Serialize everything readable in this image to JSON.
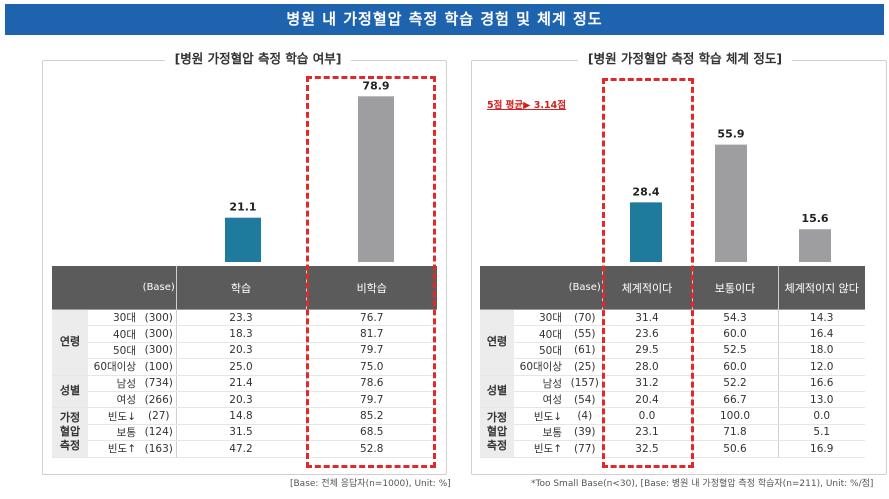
{
  "title": "병원 내 가정혈압 측정 학습 경험 및 체계 정도",
  "colors": {
    "title_bg": "#1e63ae",
    "teal": "#1f7b9e",
    "gray": "#9e9ea0",
    "header": "#5b5b5b",
    "highlight": "#e02a2a"
  },
  "chart_data": [
    {
      "type": "bar",
      "title": "[병원 가정혈압 측정 학습 여부]",
      "categories": [
        "학습",
        "비학습"
      ],
      "values": [
        21.1,
        78.9
      ],
      "ylim": [
        0,
        100
      ],
      "bar_colors": [
        "#1f7b9e",
        "#9e9ea0"
      ],
      "highlight": "비학습"
    },
    {
      "type": "bar",
      "title": "[병원 가정혈압 측정 학습 체계 정도]",
      "categories": [
        "체계적이다",
        "보통이다",
        "체계적이지 않다"
      ],
      "values": [
        28.4,
        55.9,
        15.6
      ],
      "ylim": [
        0,
        100
      ],
      "bar_colors": [
        "#1f7b9e",
        "#9e9ea0",
        "#9e9ea0"
      ],
      "annotation": "5점 평균▶ 3.14점",
      "highlight": "체계적이다"
    }
  ],
  "left_table": {
    "header": [
      "",
      "(Base)",
      "학습",
      "비학습"
    ],
    "groups": [
      {
        "name": "연령",
        "rows": [
          {
            "label": "30대",
            "base": "(300)",
            "v": [
              "23.3",
              "76.7"
            ]
          },
          {
            "label": "40대",
            "base": "(300)",
            "v": [
              "18.3",
              "81.7"
            ]
          },
          {
            "label": "50대",
            "base": "(300)",
            "v": [
              "20.3",
              "79.7"
            ]
          },
          {
            "label": "60대이상",
            "base": "(100)",
            "v": [
              "25.0",
              "75.0"
            ]
          }
        ]
      },
      {
        "name": "성별",
        "rows": [
          {
            "label": "남성",
            "base": "(734)",
            "v": [
              "21.4",
              "78.6"
            ]
          },
          {
            "label": "여성",
            "base": "(266)",
            "v": [
              "20.3",
              "79.7"
            ]
          }
        ]
      },
      {
        "name": "가정\n혈압\n측정",
        "rows": [
          {
            "label": "빈도↓",
            "base": "(27)",
            "v": [
              "14.8",
              "85.2"
            ]
          },
          {
            "label": "보통",
            "base": "(124)",
            "v": [
              "31.5",
              "68.5"
            ]
          },
          {
            "label": "빈도↑",
            "base": "(163)",
            "v": [
              "47.2",
              "52.8"
            ]
          }
        ]
      }
    ]
  },
  "right_table": {
    "header": [
      "",
      "(Base)",
      "체계적이다",
      "보통이다",
      "체계적이지 않다"
    ],
    "groups": [
      {
        "name": "연령",
        "rows": [
          {
            "label": "30대",
            "base": "(70)",
            "v": [
              "31.4",
              "54.3",
              "14.3"
            ]
          },
          {
            "label": "40대",
            "base": "(55)",
            "v": [
              "23.6",
              "60.0",
              "16.4"
            ]
          },
          {
            "label": "50대",
            "base": "(61)",
            "v": [
              "29.5",
              "52.5",
              "18.0"
            ]
          },
          {
            "label": "60대이상",
            "base": "(25)",
            "v": [
              "28.0",
              "60.0",
              "12.0"
            ]
          }
        ]
      },
      {
        "name": "성별",
        "rows": [
          {
            "label": "남성",
            "base": "(157)",
            "v": [
              "31.2",
              "52.2",
              "16.6"
            ]
          },
          {
            "label": "여성",
            "base": "(54)",
            "v": [
              "20.4",
              "66.7",
              "13.0"
            ]
          }
        ]
      },
      {
        "name": "가정\n혈압\n측정",
        "rows": [
          {
            "label": "빈도↓",
            "base": "(4)",
            "v": [
              "0.0",
              "100.0",
              "0.0"
            ]
          },
          {
            "label": "보통",
            "base": "(39)",
            "v": [
              "23.1",
              "71.8",
              "5.1"
            ]
          },
          {
            "label": "빈도↑",
            "base": "(77)",
            "v": [
              "32.5",
              "50.6",
              "16.9"
            ]
          }
        ]
      }
    ]
  },
  "footnotes": {
    "left": "[Base: 전체 응답자(n=1000), Unit: %]",
    "right": "*Too Small Base(n<30), [Base: 병원 내 가정혈압 측정 학습자(n=211), Unit: %/점]"
  }
}
